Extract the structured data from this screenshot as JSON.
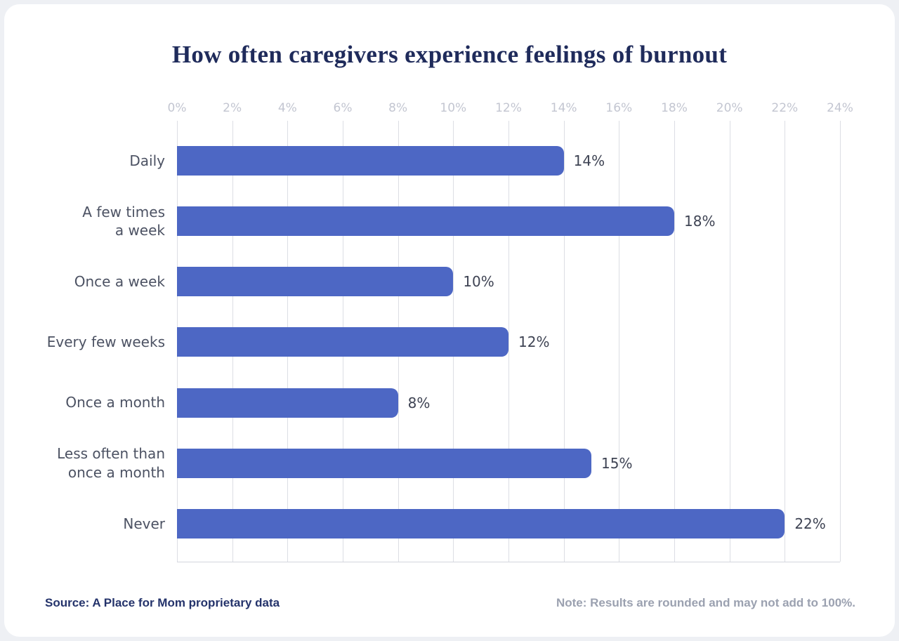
{
  "title": "How often caregivers experience feelings of burnout",
  "footer": {
    "source": "Source: A Place for Mom proprietary data",
    "note": "Note: Results are rounded and may not add to 100%."
  },
  "colors": {
    "bar": "#4d67c4",
    "title_text": "#1f2b5b",
    "category_text": "#4c5263",
    "value_text": "#3e4353",
    "tick_text": "#c3c6d1",
    "gridline": "#dcdee4",
    "source_text": "#24336b",
    "note_text": "#9ba1b0",
    "card_background": "#ffffff"
  },
  "chart_data": {
    "type": "bar",
    "orientation": "horizontal",
    "title": "How often caregivers experience feelings of burnout",
    "categories": [
      "Daily",
      "A few times\na week",
      "Once a week",
      "Every few weeks",
      "Once a month",
      "Less often than\nonce a month",
      "Never"
    ],
    "values": [
      14,
      18,
      10,
      12,
      8,
      15,
      22
    ],
    "value_labels": [
      "14%",
      "18%",
      "10%",
      "12%",
      "8%",
      "15%",
      "22%"
    ],
    "axis": {
      "min": 0,
      "max": 24,
      "step": 2,
      "position": "top",
      "tick_labels": [
        "0%",
        "2%",
        "4%",
        "6%",
        "8%",
        "10%",
        "12%",
        "14%",
        "16%",
        "18%",
        "20%",
        "22%",
        "24%"
      ]
    },
    "grid": true,
    "legend": false,
    "bar_color": "#4d67c4"
  }
}
